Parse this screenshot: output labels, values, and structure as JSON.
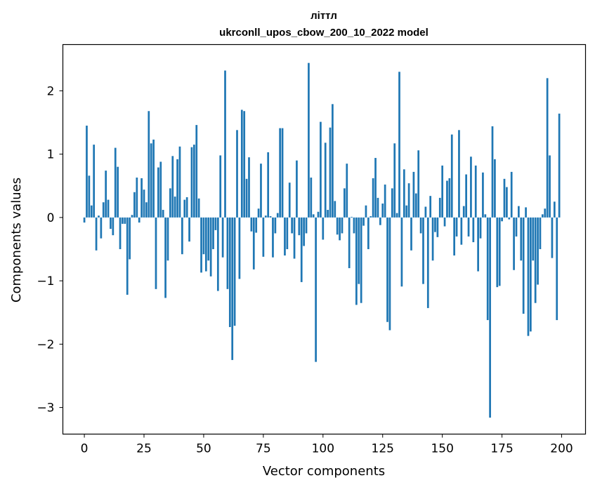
{
  "chart_data": {
    "type": "bar",
    "title": "літтл",
    "subtitle": "ukrconll_upos_cbow_200_10_2022 model",
    "xlabel": "Vector components",
    "ylabel": "Components values",
    "xlim": [
      -9,
      210
    ],
    "ylim": [
      -3.42,
      2.73
    ],
    "xticks": [
      0,
      25,
      50,
      75,
      100,
      125,
      150,
      175,
      200
    ],
    "yticks": [
      -3,
      -2,
      -1,
      0,
      1,
      2
    ],
    "ytick_labels": [
      "−3",
      "−2",
      "−1",
      "0",
      "1",
      "2"
    ],
    "grid": false,
    "bar_color": "#1f77b4",
    "x": [
      0,
      1,
      2,
      3,
      4,
      5,
      6,
      7,
      8,
      9,
      10,
      11,
      12,
      13,
      14,
      15,
      16,
      17,
      18,
      19,
      20,
      21,
      22,
      23,
      24,
      25,
      26,
      27,
      28,
      29,
      30,
      31,
      32,
      33,
      34,
      35,
      36,
      37,
      38,
      39,
      40,
      41,
      42,
      43,
      44,
      45,
      46,
      47,
      48,
      49,
      50,
      51,
      52,
      53,
      54,
      55,
      56,
      57,
      58,
      59,
      60,
      61,
      62,
      63,
      64,
      65,
      66,
      67,
      68,
      69,
      70,
      71,
      72,
      73,
      74,
      75,
      76,
      77,
      78,
      79,
      80,
      81,
      82,
      83,
      84,
      85,
      86,
      87,
      88,
      89,
      90,
      91,
      92,
      93,
      94,
      95,
      96,
      97,
      98,
      99,
      100,
      101,
      102,
      103,
      104,
      105,
      106,
      107,
      108,
      109,
      110,
      111,
      112,
      113,
      114,
      115,
      116,
      117,
      118,
      119,
      120,
      121,
      122,
      123,
      124,
      125,
      126,
      127,
      128,
      129,
      130,
      131,
      132,
      133,
      134,
      135,
      136,
      137,
      138,
      139,
      140,
      141,
      142,
      143,
      144,
      145,
      146,
      147,
      148,
      149,
      150,
      151,
      152,
      153,
      154,
      155,
      156,
      157,
      158,
      159,
      160,
      161,
      162,
      163,
      164,
      165,
      166,
      167,
      168,
      169,
      170,
      171,
      172,
      173,
      174,
      175,
      176,
      177,
      178,
      179,
      180,
      181,
      182,
      183,
      184,
      185,
      186,
      187,
      188,
      189,
      190,
      191,
      192,
      193,
      194,
      195,
      196,
      197,
      198,
      199
    ],
    "values": [
      -0.08,
      1.45,
      0.66,
      0.19,
      1.15,
      -0.52,
      0.03,
      -0.33,
      0.24,
      0.74,
      0.28,
      -0.18,
      -0.28,
      1.1,
      0.8,
      -0.5,
      -0.1,
      -0.1,
      -1.22,
      -0.66,
      0.04,
      0.4,
      0.63,
      -0.08,
      0.62,
      0.44,
      0.24,
      1.68,
      1.17,
      1.23,
      -1.13,
      0.79,
      0.88,
      0.12,
      -1.27,
      -0.68,
      0.46,
      0.97,
      0.33,
      0.92,
      1.12,
      -0.58,
      0.28,
      0.32,
      -0.38,
      1.11,
      1.15,
      1.46,
      0.3,
      -0.87,
      -0.58,
      -0.85,
      -0.68,
      -0.93,
      -0.5,
      -0.2,
      -1.16,
      0.98,
      -0.63,
      2.32,
      -1.13,
      -1.73,
      -2.25,
      -1.71,
      1.38,
      -0.97,
      1.7,
      1.68,
      0.61,
      0.95,
      -0.22,
      -0.82,
      -0.24,
      0.14,
      0.85,
      -0.62,
      0.03,
      1.03,
      0.02,
      -0.63,
      -0.25,
      0.07,
      1.41,
      1.41,
      -0.6,
      -0.5,
      0.55,
      -0.25,
      -0.65,
      0.9,
      -0.28,
      -1.02,
      -0.45,
      -0.25,
      2.44,
      0.63,
      0.05,
      -2.28,
      0.09,
      1.51,
      -0.35,
      1.18,
      0.12,
      1.42,
      1.79,
      0.26,
      -0.27,
      -0.36,
      -0.25,
      0.46,
      0.85,
      -0.8,
      0.01,
      -0.25,
      -1.38,
      -1.05,
      -1.35,
      -0.13,
      0.19,
      -0.5,
      0.02,
      0.62,
      0.94,
      0.31,
      -0.12,
      0.22,
      0.52,
      -1.65,
      -1.78,
      0.46,
      1.17,
      0.07,
      2.3,
      -1.09,
      0.76,
      0.19,
      0.54,
      -0.52,
      0.72,
      0.38,
      1.06,
      -0.25,
      -1.05,
      0.17,
      -1.43,
      0.34,
      -0.68,
      -0.23,
      -0.31,
      0.31,
      0.82,
      -0.14,
      0.58,
      0.62,
      1.31,
      -0.6,
      -0.3,
      1.38,
      -0.43,
      0.18,
      0.68,
      -0.3,
      0.96,
      -0.39,
      0.82,
      -0.85,
      -0.33,
      0.71,
      0.05,
      -1.62,
      -3.16,
      1.44,
      0.92,
      -1.1,
      -1.08,
      -0.06,
      0.61,
      0.48,
      -0.03,
      0.72,
      -0.83,
      -0.3,
      0.18,
      -0.68,
      -1.52,
      0.16,
      -1.87,
      -1.8,
      -0.68,
      -1.35,
      -1.06,
      -0.5,
      0.05,
      0.14,
      2.2,
      0.98,
      -0.64,
      0.25,
      -1.62,
      1.64
    ]
  }
}
